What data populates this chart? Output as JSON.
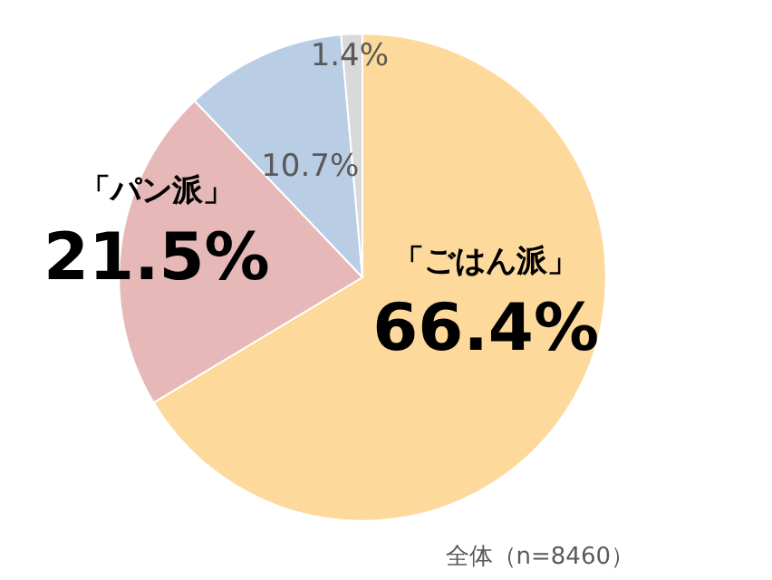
{
  "chart_data": {
    "type": "pie",
    "categories": [
      "「ごはん派」",
      "「パン派」",
      null,
      null
    ],
    "values": [
      66.4,
      21.5,
      10.7,
      1.4
    ],
    "value_labels": [
      "66.4%",
      "21.5%",
      "10.7%",
      "1.4%"
    ],
    "colors": [
      "#fdd99b",
      "#e6b9b8",
      "#b9cde5",
      "#d9d9d9"
    ],
    "annotations": [
      "全体（n=8460）"
    ],
    "legend": false
  }
}
